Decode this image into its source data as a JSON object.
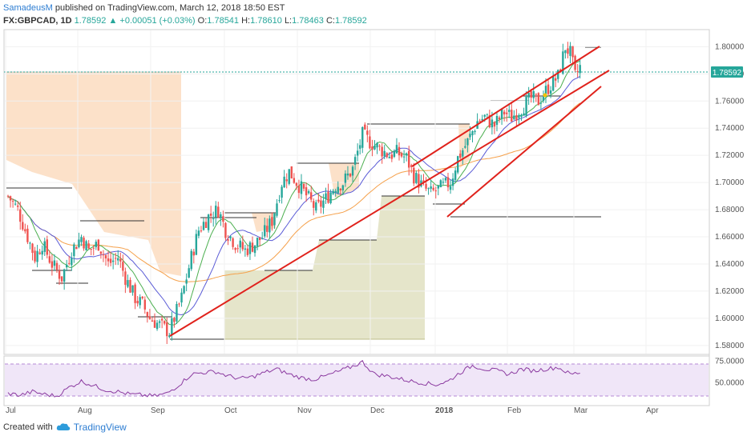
{
  "header": {
    "author": "SamadeusM",
    "published_text": "published on TradingView.com, March 12, 2018 18:50 EST",
    "symbol": "FX:GBPCAD, 1D",
    "last": "1.78592",
    "change": "+0.00051 (+0.03%)",
    "o_label": "O:",
    "o": "1.78541",
    "h_label": "H:",
    "h": "1.78610",
    "l_label": "L:",
    "l": "1.78463",
    "c_label": "C:",
    "c": "1.78592"
  },
  "footer": {
    "created_with": "Created with",
    "brand": "TradingView"
  },
  "colors": {
    "up": "#26a69a",
    "down": "#ef5350",
    "trendline": "#e0221c",
    "sma_fast": "#4caf50",
    "sma_mid": "#5a5bd6",
    "sma_slow": "#f5a04a",
    "rsi": "#8b3aa0",
    "rsi_band": "#eadcf5",
    "zone_orange": "#fcdcc0",
    "zone_olive": "#e2e2c4"
  },
  "chart_data": {
    "type": "candlestick",
    "price_axis": {
      "ticks": [
        "1.80000",
        "1.78000",
        "1.76000",
        "1.74000",
        "1.72000",
        "1.70000",
        "1.68000",
        "1.66000",
        "1.64000",
        "1.62000",
        "1.60000",
        "1.58000"
      ],
      "ylim": [
        1.574,
        1.812
      ],
      "last_price_label": "1.78592"
    },
    "time_axis": {
      "ticks": [
        "Jul",
        "Aug",
        "Sep",
        "Oct",
        "Nov",
        "Dec",
        "2018",
        "Feb",
        "Mar",
        "Apr"
      ]
    },
    "rsi_axis": {
      "ticks": [
        "75.0000",
        "50.0000"
      ],
      "ylim": [
        25,
        80
      ],
      "band": [
        30,
        70
      ]
    },
    "price_path": [
      [
        0,
        1.69
      ],
      [
        4,
        1.68
      ],
      [
        8,
        1.66
      ],
      [
        11,
        1.645
      ],
      [
        14,
        1.655
      ],
      [
        18,
        1.64
      ],
      [
        22,
        1.63
      ],
      [
        26,
        1.65
      ],
      [
        30,
        1.66
      ],
      [
        33,
        1.65
      ],
      [
        37,
        1.655
      ],
      [
        41,
        1.64
      ],
      [
        45,
        1.645
      ],
      [
        48,
        1.63
      ],
      [
        52,
        1.615
      ],
      [
        55,
        1.61
      ],
      [
        58,
        1.6
      ],
      [
        62,
        1.595
      ],
      [
        66,
        1.59
      ],
      [
        68,
        1.6
      ],
      [
        71,
        1.615
      ],
      [
        75,
        1.645
      ],
      [
        78,
        1.665
      ],
      [
        82,
        1.675
      ],
      [
        86,
        1.68
      ],
      [
        89,
        1.665
      ],
      [
        93,
        1.655
      ],
      [
        97,
        1.65
      ],
      [
        101,
        1.655
      ],
      [
        104,
        1.66
      ],
      [
        108,
        1.672
      ],
      [
        112,
        1.7
      ],
      [
        115,
        1.708
      ],
      [
        119,
        1.698
      ],
      [
        123,
        1.688
      ],
      [
        126,
        1.68
      ],
      [
        130,
        1.688
      ],
      [
        134,
        1.698
      ],
      [
        137,
        1.7
      ],
      [
        141,
        1.71
      ],
      [
        145,
        1.735
      ],
      [
        148,
        1.73
      ],
      [
        152,
        1.725
      ],
      [
        156,
        1.72
      ],
      [
        159,
        1.722
      ],
      [
        163,
        1.718
      ],
      [
        166,
        1.705
      ],
      [
        170,
        1.696
      ],
      [
        173,
        1.692
      ],
      [
        177,
        1.696
      ],
      [
        181,
        1.7
      ],
      [
        184,
        1.718
      ],
      [
        188,
        1.73
      ],
      [
        192,
        1.745
      ],
      [
        195,
        1.748
      ],
      [
        199,
        1.742
      ],
      [
        203,
        1.752
      ],
      [
        206,
        1.748
      ],
      [
        210,
        1.755
      ],
      [
        214,
        1.762
      ],
      [
        217,
        1.76
      ],
      [
        221,
        1.77
      ],
      [
        225,
        1.778
      ],
      [
        228,
        1.8
      ],
      [
        230,
        1.795
      ],
      [
        232,
        1.778
      ],
      [
        234,
        1.785
      ]
    ],
    "rsi_path": [
      [
        0,
        38
      ],
      [
        5,
        36
      ],
      [
        10,
        40
      ],
      [
        15,
        37
      ],
      [
        20,
        35
      ],
      [
        25,
        45
      ],
      [
        30,
        52
      ],
      [
        35,
        47
      ],
      [
        40,
        42
      ],
      [
        45,
        40
      ],
      [
        50,
        37
      ],
      [
        55,
        36
      ],
      [
        60,
        35
      ],
      [
        65,
        38
      ],
      [
        70,
        48
      ],
      [
        75,
        60
      ],
      [
        80,
        62
      ],
      [
        85,
        63
      ],
      [
        90,
        58
      ],
      [
        95,
        55
      ],
      [
        100,
        57
      ],
      [
        105,
        62
      ],
      [
        110,
        66
      ],
      [
        115,
        60
      ],
      [
        120,
        56
      ],
      [
        125,
        54
      ],
      [
        130,
        58
      ],
      [
        135,
        63
      ],
      [
        140,
        68
      ],
      [
        145,
        74
      ],
      [
        150,
        60
      ],
      [
        155,
        58
      ],
      [
        160,
        55
      ],
      [
        165,
        52
      ],
      [
        170,
        50
      ],
      [
        175,
        48
      ],
      [
        180,
        52
      ],
      [
        185,
        62
      ],
      [
        190,
        70
      ],
      [
        195,
        66
      ],
      [
        200,
        64
      ],
      [
        205,
        60
      ],
      [
        210,
        66
      ],
      [
        215,
        64
      ],
      [
        220,
        66
      ],
      [
        225,
        68
      ],
      [
        230,
        60
      ],
      [
        234,
        62
      ]
    ]
  }
}
